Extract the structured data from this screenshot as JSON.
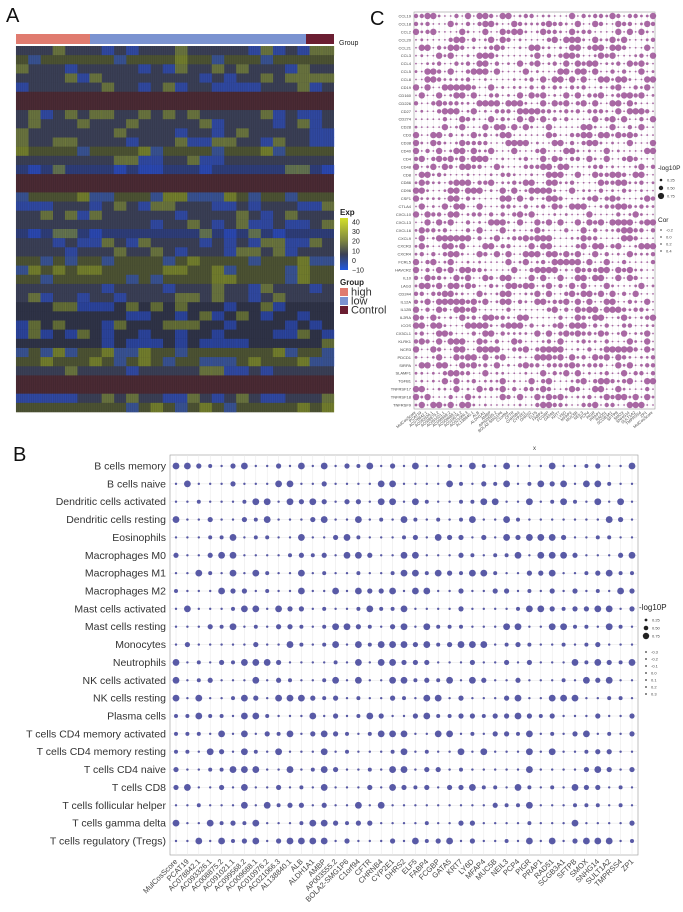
{
  "panels": {
    "a": "A",
    "b": "B",
    "c": "C"
  },
  "heatmap": {
    "group_label": "Group",
    "exp_title": "Exp",
    "exp_ticks": [
      "40",
      "30",
      "20",
      "10",
      "0",
      "−10"
    ],
    "group_legend_title": "Group",
    "groups": [
      {
        "label": "high",
        "color": "#e07b6f"
      },
      {
        "label": "low",
        "color": "#7b93d1"
      },
      {
        "label": "Control",
        "color": "#6b1e32"
      }
    ],
    "colors": {
      "high": "#e07b6f",
      "low": "#7b93d1",
      "control": "#6b1e32",
      "low_exp": "#2d55c8",
      "mid_exp": "#3a3f55",
      "high_exp": "#b8c41e"
    }
  },
  "chart_data": [
    {
      "type": "scatter",
      "panel": "B",
      "y_categories": [
        "B cells memory",
        "B cells naive",
        "Dendritic cells activated",
        "Dendritic cells resting",
        "Eosinophils",
        "Macrophages M0",
        "Macrophages M1",
        "Macrophages M2",
        "Mast cells activated",
        "Mast cells resting",
        "Monocytes",
        "Neutrophils",
        "NK cells activated",
        "NK cells resting",
        "Plasma cells",
        "T cells CD4 memory activated",
        "T cells CD4 memory resting",
        "T cells CD4 naive",
        "T cells CD8",
        "T cells follicular helper",
        "T cells gamma delta",
        "T cells regulatory (Tregs)"
      ],
      "x_categories": [
        "MulCosScore",
        "PCAT19",
        "AC078842.1",
        "AC093326.1",
        "AC008875.2",
        "AC091021.1",
        "AC099568.2",
        "AC009688.1",
        "AC010976.2",
        "AC021066.3",
        "AL138840.1",
        "ALB",
        "ALDH1A1",
        "AMBP",
        "AP003555.2",
        "BOLA2-SMG1P6",
        "C1orf94",
        "CFTR",
        "CHRNB4",
        "CYP2E1",
        "DHRS2",
        "ELF5",
        "FABP4",
        "FCGBP",
        "GATA5",
        "KRT7",
        "LY6D",
        "MFAP4",
        "MUC5B",
        "NEIL3",
        "PCP4",
        "PIGR",
        "PRAP1",
        "RAD51",
        "SCGB3A1",
        "SFTPB",
        "SMOX",
        "SNHG14",
        "SULT1A2",
        "TMPRSS4",
        "ZP1"
      ],
      "size_legend_title": "-log10P",
      "size_legend_values": [
        "0.25",
        "0.50",
        "0.75"
      ],
      "color_legend_values": [
        "-0.3",
        "-0.2",
        "-0.1",
        "0.0",
        "0.1",
        "0.2",
        "0.3"
      ],
      "point_color": "#4b4c9e"
    },
    {
      "type": "scatter",
      "panel": "C",
      "y_categories": [
        "CCL19",
        "CCL18",
        "CCL2",
        "CCL20",
        "CCL21",
        "CCL3",
        "CCL4",
        "CCL5",
        "CCL8",
        "CD19",
        "CD160",
        "CD226",
        "CD27",
        "CD274",
        "CD28",
        "CD3",
        "CD38",
        "CD40",
        "CD4",
        "CD48",
        "CD8",
        "CD86",
        "CD96",
        "CSF1",
        "CTLA4",
        "CXCL10",
        "CXCL13",
        "CXCL16",
        "CXCL9",
        "CXCR3",
        "CXCR4",
        "FCRL5",
        "HAVCR2",
        "IL10",
        "LAG3",
        "CD244",
        "IL12A",
        "IL12B",
        "IL2RA",
        "ICOS",
        "CX3CL1",
        "KLRK1",
        "NCR3",
        "PDCD1",
        "SIRPA",
        "SLAMF1",
        "TGFB1",
        "TNFRSF17",
        "TNFRSF18",
        "TNFRSF9"
      ],
      "x_axis_label": "x",
      "size_legend_title": "-log10P",
      "size_legend_values": [
        "0.25",
        "0.50",
        "0.75"
      ],
      "color_legend_title": "Cor",
      "color_legend_values": [
        "-0.2",
        "0.0",
        "0.2",
        "0.4"
      ],
      "point_color": "#a0599a"
    }
  ]
}
